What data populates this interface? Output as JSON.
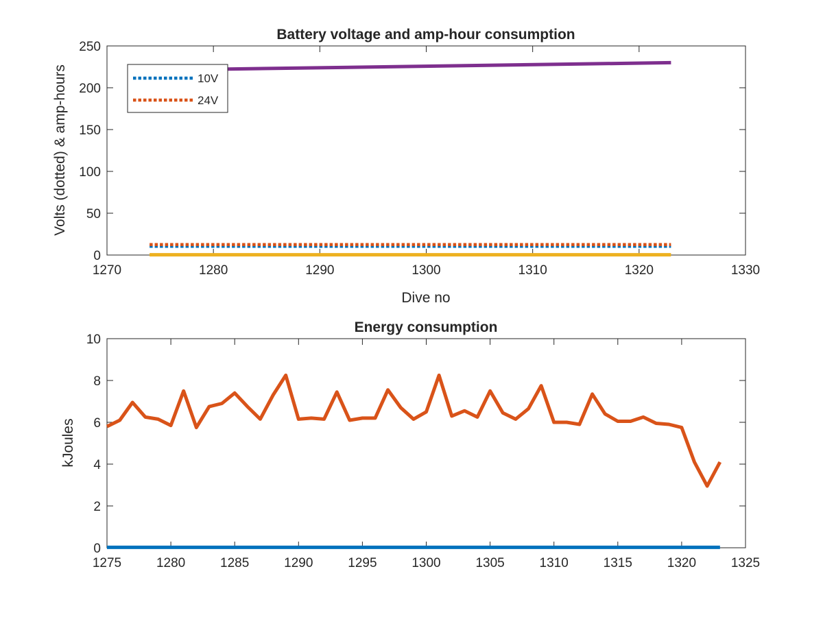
{
  "chart_data": [
    {
      "type": "line",
      "title": "Battery voltage and amp-hour consumption",
      "xlabel": "Dive no",
      "ylabel": "Volts (dotted) & amp-hours",
      "xlim": [
        1270,
        1330
      ],
      "ylim": [
        0,
        250
      ],
      "xticks": [
        1270,
        1280,
        1290,
        1300,
        1310,
        1320,
        1330
      ],
      "yticks": [
        0,
        50,
        100,
        150,
        200,
        250
      ],
      "grid": false,
      "legend_position": "top-left",
      "series": [
        {
          "name": "10V",
          "style": "dotted",
          "color": "#0072bd",
          "x": [
            1274,
            1323
          ],
          "y": [
            10.5,
            10.5
          ]
        },
        {
          "name": "24V",
          "style": "dotted",
          "color": "#d95319",
          "x": [
            1274,
            1323
          ],
          "y": [
            12.5,
            12.5
          ]
        },
        {
          "style": "solid",
          "color": "#edb120",
          "x": [
            1274,
            1323
          ],
          "y": [
            0.3,
            0.3
          ]
        },
        {
          "style": "solid",
          "color": "#7e2f8e",
          "x": [
            1274,
            1323
          ],
          "y": [
            221,
            230
          ]
        }
      ]
    },
    {
      "type": "line",
      "title": "Energy consumption",
      "xlabel": "",
      "ylabel": "kJoules",
      "xlim": [
        1275,
        1325
      ],
      "ylim": [
        0,
        10
      ],
      "xticks": [
        1275,
        1280,
        1285,
        1290,
        1295,
        1300,
        1305,
        1310,
        1315,
        1320,
        1325
      ],
      "yticks": [
        0,
        2,
        4,
        6,
        8,
        10
      ],
      "grid": false,
      "series": [
        {
          "style": "solid",
          "color": "#d95319",
          "x": [
            1275,
            1276,
            1277,
            1278,
            1279,
            1280,
            1281,
            1282,
            1283,
            1284,
            1285,
            1286,
            1287,
            1288,
            1289,
            1290,
            1291,
            1292,
            1293,
            1294,
            1295,
            1296,
            1297,
            1298,
            1299,
            1300,
            1301,
            1302,
            1303,
            1304,
            1305,
            1306,
            1307,
            1308,
            1309,
            1310,
            1311,
            1312,
            1313,
            1314,
            1315,
            1316,
            1317,
            1318,
            1319,
            1320,
            1321,
            1322,
            1323
          ],
          "y": [
            5.8,
            6.1,
            6.95,
            6.25,
            6.15,
            5.85,
            7.5,
            5.75,
            6.75,
            6.9,
            7.4,
            6.75,
            6.15,
            7.3,
            8.25,
            6.15,
            6.2,
            6.15,
            7.45,
            6.1,
            6.2,
            6.2,
            7.55,
            6.7,
            6.15,
            6.5,
            8.25,
            6.3,
            6.55,
            6.25,
            7.5,
            6.45,
            6.15,
            6.65,
            7.75,
            6.0,
            6.0,
            5.9,
            7.35,
            6.4,
            6.05,
            6.05,
            6.25,
            5.95,
            5.9,
            5.75,
            4.1,
            2.95,
            4.1
          ]
        },
        {
          "style": "solid",
          "color": "#0072bd",
          "x": [
            1275,
            1323
          ],
          "y": [
            0.02,
            0.02
          ]
        }
      ]
    }
  ]
}
